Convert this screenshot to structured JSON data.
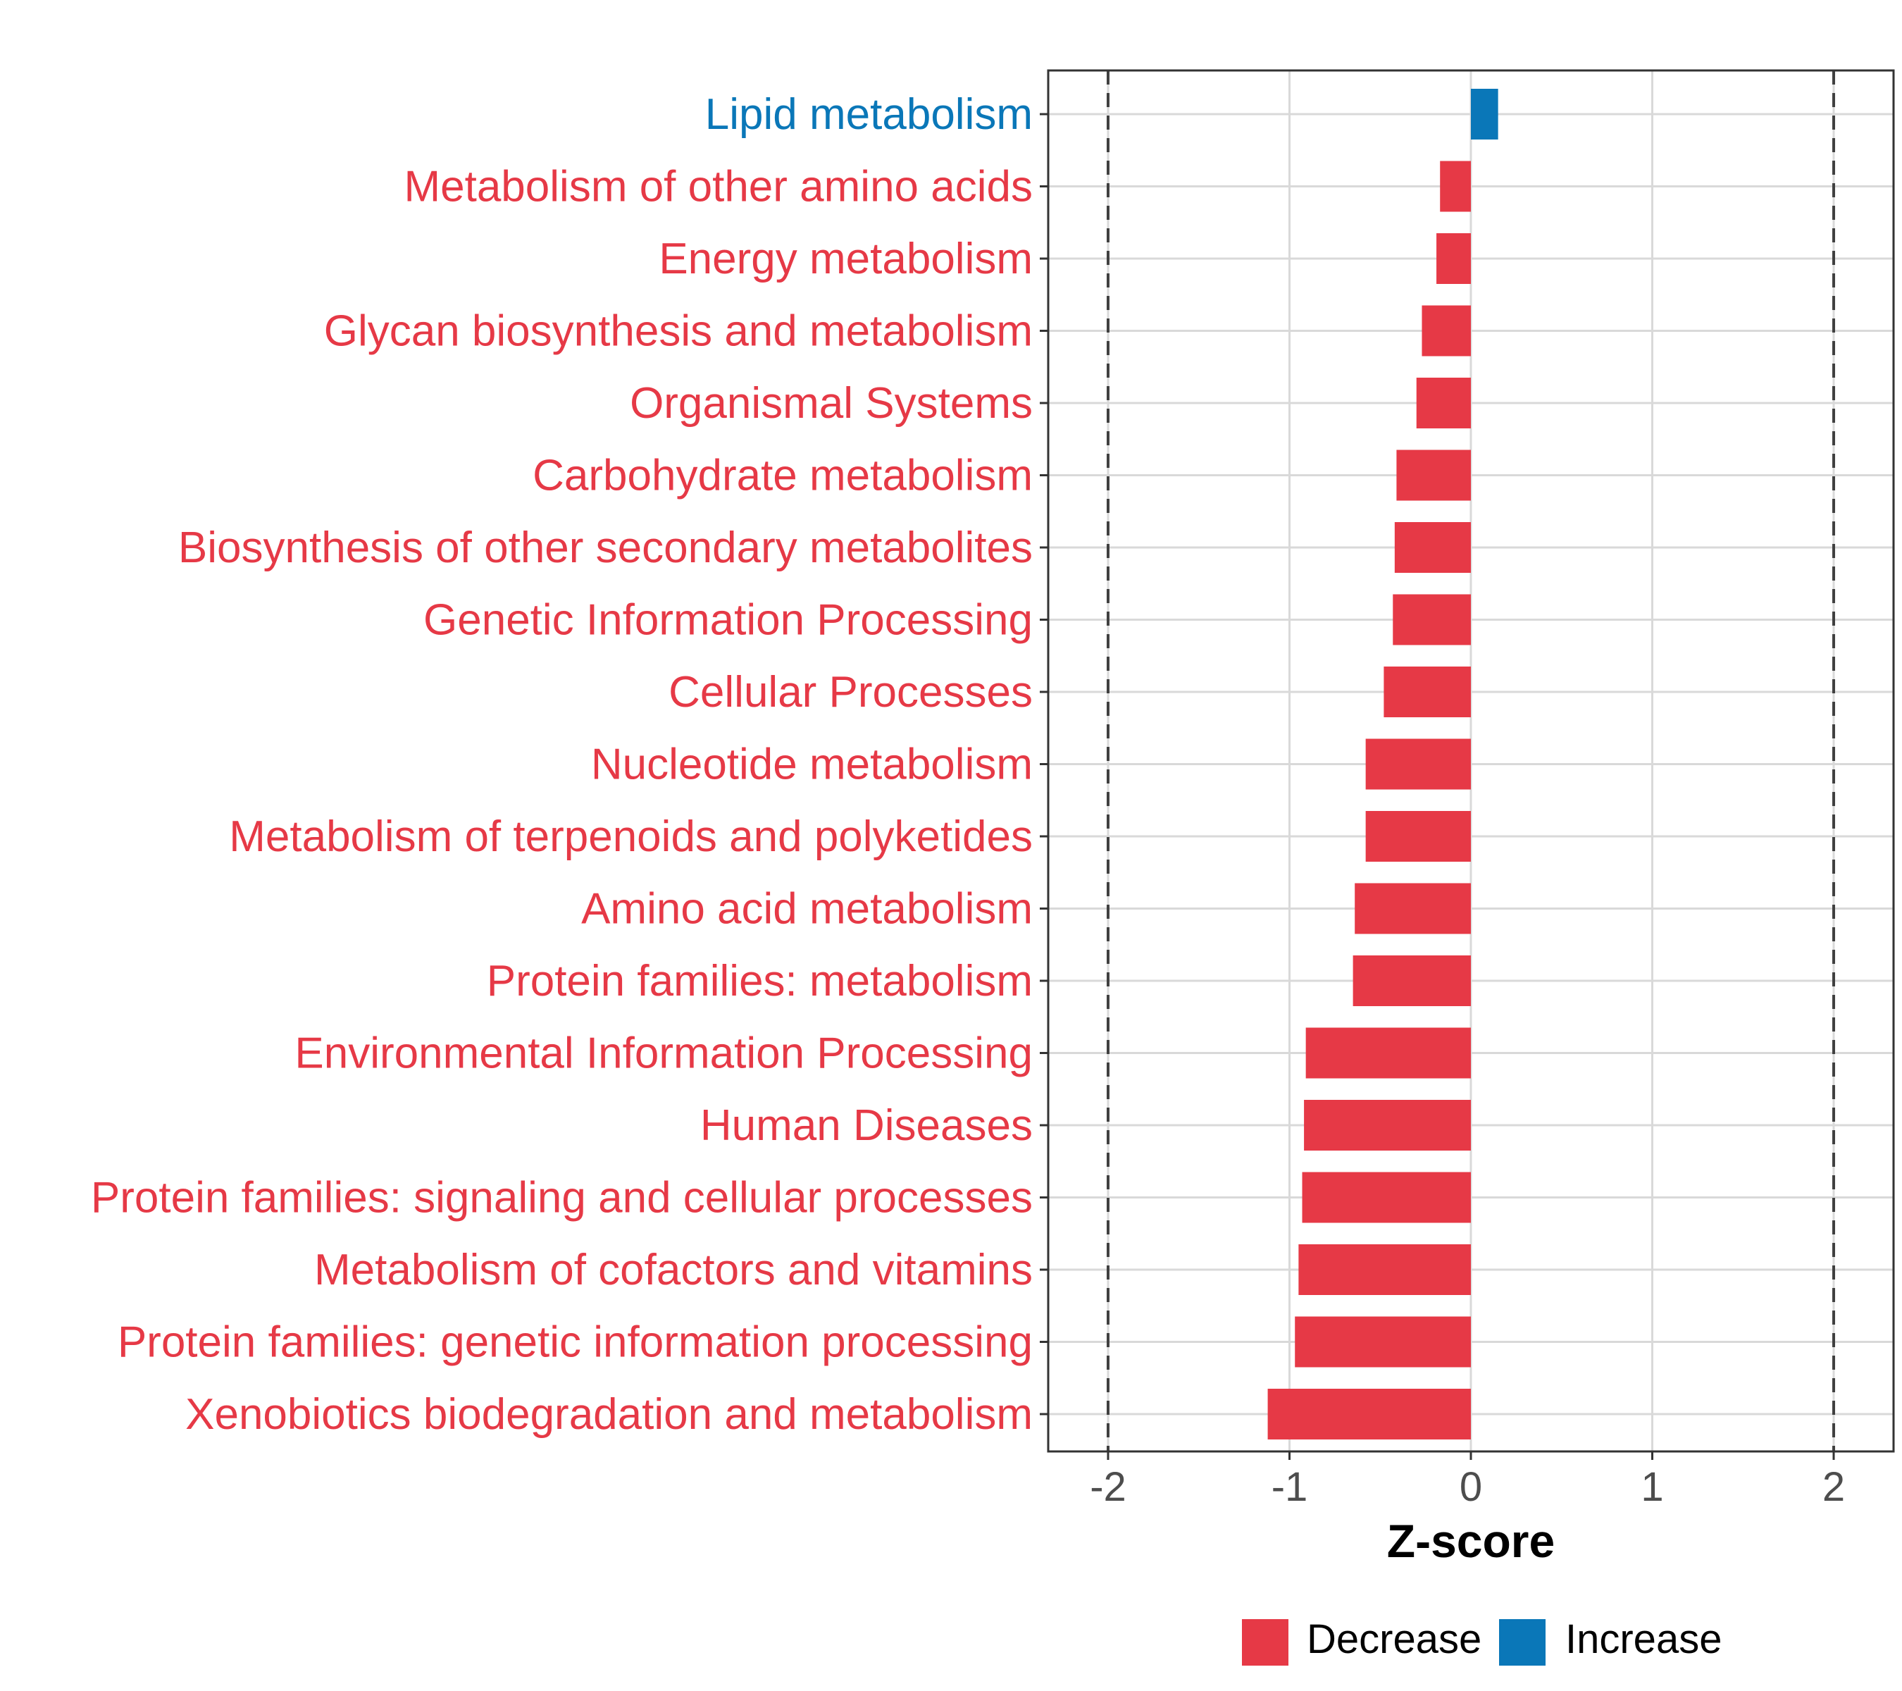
{
  "chart_data": {
    "type": "bar",
    "orientation": "horizontal",
    "title": "",
    "xlabel": "Z-score",
    "ylabel": "",
    "xlim": [
      -2.33,
      2.33
    ],
    "xticks": [
      -2,
      -1,
      0,
      1,
      2
    ],
    "xtick_labels": [
      "-2",
      "-1",
      "0",
      "1",
      "2"
    ],
    "reference_lines": [
      -2,
      2
    ],
    "grid": true,
    "colors": {
      "Decrease": "#e63946",
      "Increase": "#0a77b8",
      "grid": "#d9d9d9",
      "tick_text": "#4d4d4d"
    },
    "categories": [
      "Lipid metabolism",
      "Metabolism of other amino acids",
      "Energy metabolism",
      "Glycan biosynthesis and metabolism",
      "Organismal Systems",
      "Carbohydrate metabolism",
      "Biosynthesis of other secondary metabolites",
      "Genetic Information Processing",
      "Cellular Processes",
      "Nucleotide metabolism",
      "Metabolism of terpenoids and polyketides",
      "Amino acid metabolism",
      "Protein families: metabolism",
      "Environmental Information Processing",
      "Human Diseases",
      "Protein families: signaling and cellular processes",
      "Metabolism of cofactors and vitamins",
      "Protein families: genetic information processing",
      "Xenobiotics biodegradation and metabolism"
    ],
    "values": [
      0.15,
      -0.17,
      -0.19,
      -0.27,
      -0.3,
      -0.41,
      -0.42,
      -0.43,
      -0.48,
      -0.58,
      -0.58,
      -0.64,
      -0.65,
      -0.91,
      -0.92,
      -0.93,
      -0.95,
      -0.97,
      -1.12
    ],
    "groups": [
      "Increase",
      "Decrease",
      "Decrease",
      "Decrease",
      "Decrease",
      "Decrease",
      "Decrease",
      "Decrease",
      "Decrease",
      "Decrease",
      "Decrease",
      "Decrease",
      "Decrease",
      "Decrease",
      "Decrease",
      "Decrease",
      "Decrease",
      "Decrease",
      "Decrease"
    ],
    "legend": {
      "position": "bottom",
      "entries": [
        "Decrease",
        "Increase"
      ]
    }
  }
}
